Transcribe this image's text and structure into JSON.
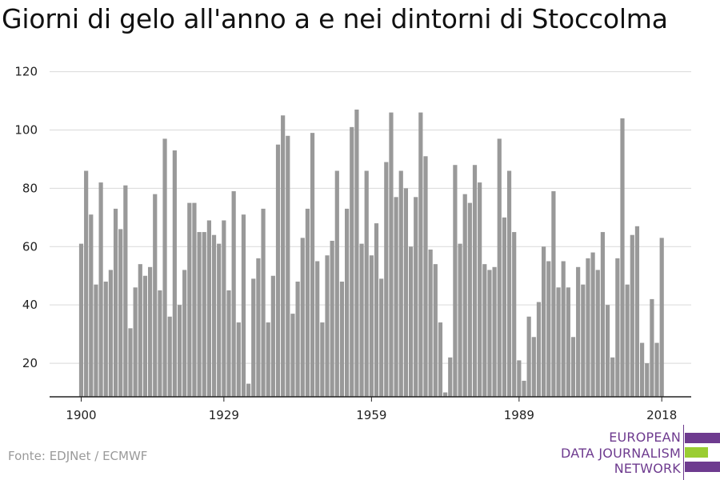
{
  "title": "Giorni di gelo all'anno a e nei dintorni di Stoccolma",
  "source": "Fonte: EDJNet / ECMWF",
  "logo": {
    "lines": [
      "EUROPEAN",
      "DATA JOURNALISM",
      "NETWORK"
    ],
    "colors": {
      "text": "#6e3b8f",
      "purple": "#6e3b8f",
      "green": "#9acd32"
    }
  },
  "colors": {
    "bar": "#999999",
    "grid": "#d9d9d9",
    "axis": "#222222",
    "text": "#222222"
  },
  "chart_data": {
    "type": "bar",
    "grid": true,
    "ylim": [
      8.5,
      121
    ],
    "yticks": [
      20,
      40,
      60,
      80,
      100,
      120
    ],
    "xticks": [
      1900,
      1929,
      1959,
      1989,
      2018
    ],
    "x": [
      1900,
      1901,
      1902,
      1903,
      1904,
      1905,
      1906,
      1907,
      1908,
      1909,
      1910,
      1911,
      1912,
      1913,
      1914,
      1915,
      1916,
      1917,
      1918,
      1919,
      1920,
      1921,
      1922,
      1923,
      1924,
      1925,
      1926,
      1927,
      1928,
      1929,
      1930,
      1931,
      1932,
      1933,
      1934,
      1935,
      1936,
      1937,
      1938,
      1939,
      1940,
      1941,
      1942,
      1943,
      1944,
      1945,
      1946,
      1947,
      1948,
      1949,
      1950,
      1951,
      1952,
      1953,
      1954,
      1955,
      1956,
      1957,
      1958,
      1959,
      1960,
      1961,
      1962,
      1963,
      1964,
      1965,
      1966,
      1967,
      1968,
      1969,
      1970,
      1971,
      1972,
      1973,
      1974,
      1975,
      1976,
      1977,
      1978,
      1979,
      1980,
      1981,
      1982,
      1983,
      1984,
      1985,
      1986,
      1987,
      1988,
      1989,
      1990,
      1991,
      1992,
      1993,
      1994,
      1995,
      1996,
      1997,
      1998,
      1999,
      2000,
      2001,
      2002,
      2003,
      2004,
      2005,
      2006,
      2007,
      2008,
      2009,
      2010,
      2011,
      2012,
      2013,
      2014,
      2015,
      2016,
      2017,
      2018
    ],
    "values": [
      61,
      86,
      71,
      47,
      82,
      48,
      52,
      73,
      66,
      81,
      32,
      46,
      54,
      50,
      53,
      78,
      45,
      97,
      36,
      93,
      40,
      52,
      75,
      75,
      65,
      65,
      69,
      64,
      61,
      69,
      45,
      79,
      34,
      71,
      13,
      49,
      56,
      73,
      34,
      50,
      95,
      105,
      98,
      37,
      48,
      63,
      73,
      99,
      55,
      34,
      57,
      62,
      86,
      48,
      73,
      101,
      107,
      61,
      86,
      57,
      68,
      49,
      89,
      106,
      77,
      86,
      80,
      60,
      77,
      106,
      91,
      59,
      54,
      34,
      10,
      22,
      88,
      61,
      78,
      75,
      88,
      82,
      54,
      52,
      53,
      97,
      70,
      86,
      65,
      21,
      14,
      36,
      29,
      41,
      60,
      55,
      79,
      46,
      55,
      46,
      29,
      53,
      47,
      56,
      58,
      52,
      65,
      40,
      22,
      56,
      104,
      47,
      64,
      67,
      27,
      20,
      42,
      27,
      63
    ]
  }
}
